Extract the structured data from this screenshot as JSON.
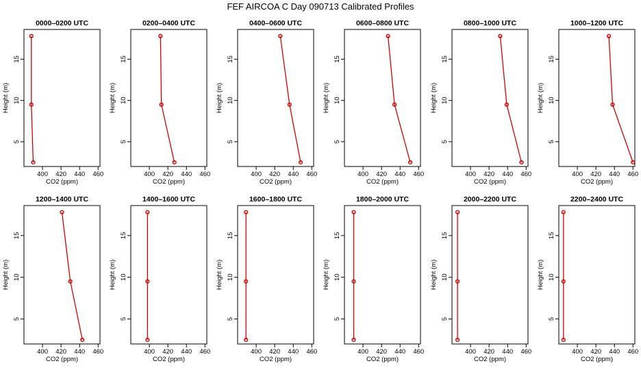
{
  "chart_data": {
    "type": "line",
    "title": "FEF AIRCOA C  Day 090713  Calibrated Profiles",
    "xlabel": "CO2 (ppm)",
    "ylabel": "Height (m)",
    "xlim": [
      380,
      462
    ],
    "ylim": [
      2,
      18.6
    ],
    "xticks": [
      400,
      420,
      440,
      460
    ],
    "yticks": [
      5,
      10,
      15
    ],
    "line_color": "#d40000",
    "panels": [
      {
        "title": "0000–0200 UTC",
        "x": [
          390,
          388,
          388
        ],
        "y": [
          2.5,
          9.5,
          17.8
        ]
      },
      {
        "title": "0200–0400 UTC",
        "x": [
          427,
          413,
          412
        ],
        "y": [
          2.5,
          9.5,
          17.8
        ]
      },
      {
        "title": "0400–0600 UTC",
        "x": [
          448,
          436,
          426
        ],
        "y": [
          2.5,
          9.5,
          17.8
        ]
      },
      {
        "title": "0600–0800 UTC",
        "x": [
          451,
          434,
          427
        ],
        "y": [
          2.5,
          9.5,
          17.8
        ]
      },
      {
        "title": "0800–1000 UTC",
        "x": [
          455,
          439,
          432
        ],
        "y": [
          2.5,
          9.5,
          17.8
        ]
      },
      {
        "title": "1000–1200 UTC",
        "x": [
          460,
          438,
          434
        ],
        "y": [
          2.5,
          9.5,
          17.8
        ]
      },
      {
        "title": "1200–1400 UTC",
        "x": [
          443,
          430,
          421
        ],
        "y": [
          2.5,
          9.5,
          17.8
        ]
      },
      {
        "title": "1400–1600 UTC",
        "x": [
          398,
          398,
          398
        ],
        "y": [
          2.5,
          9.5,
          17.8
        ]
      },
      {
        "title": "1600–1800 UTC",
        "x": [
          389,
          389,
          389
        ],
        "y": [
          2.5,
          9.5,
          17.8
        ]
      },
      {
        "title": "1800–2000 UTC",
        "x": [
          390,
          390,
          390
        ],
        "y": [
          2.5,
          9.5,
          17.8
        ]
      },
      {
        "title": "2000–2200 UTC",
        "x": [
          386,
          386,
          386
        ],
        "y": [
          2.5,
          9.5,
          17.8
        ]
      },
      {
        "title": "2200–2400 UTC",
        "x": [
          385,
          385,
          385
        ],
        "y": [
          2.5,
          9.5,
          17.8
        ]
      }
    ]
  }
}
